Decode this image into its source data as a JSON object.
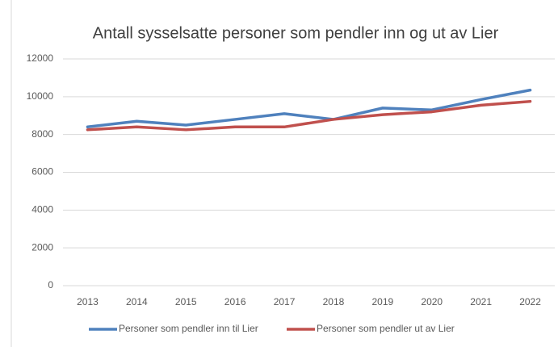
{
  "chart_data": {
    "type": "line",
    "title": "Antall sysselsatte personer som pendler inn og ut av Lier",
    "categories": [
      "2013",
      "2014",
      "2015",
      "2016",
      "2017",
      "2018",
      "2019",
      "2020",
      "2021",
      "2022"
    ],
    "series": [
      {
        "name": "Personer som pendler inn til Lier",
        "color": "#4f81bd",
        "values": [
          8400,
          8700,
          8500,
          8800,
          9100,
          8800,
          9400,
          9300,
          9850,
          10350
        ]
      },
      {
        "name": "Personer som pendler ut av Lier",
        "color": "#c0504d",
        "values": [
          8250,
          8400,
          8250,
          8400,
          8400,
          8800,
          9050,
          9200,
          9550,
          9750
        ]
      }
    ],
    "ylim": [
      0,
      12000
    ],
    "yticks": [
      0,
      2000,
      4000,
      6000,
      8000,
      10000,
      12000
    ],
    "grid": true,
    "legend": "bottom"
  }
}
